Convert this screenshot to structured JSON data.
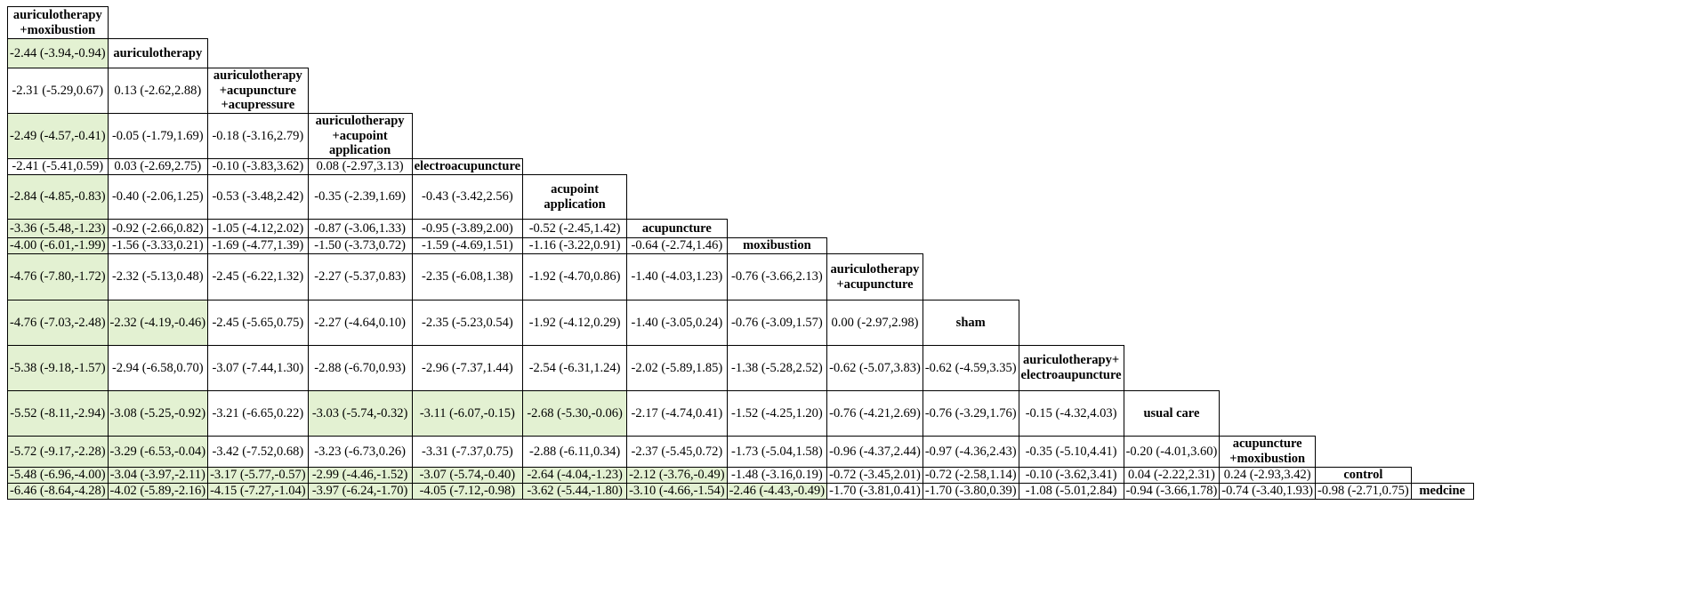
{
  "chart_data": {
    "type": "table",
    "title": "",
    "treatments": [
      "auriculotherapy +moxibustion",
      "auriculotherapy",
      "auriculotherapy +acupuncture +acupressure",
      "auriculotherapy +acupoint application",
      "electroacupuncture",
      "acupoint application",
      "acupuncture",
      "moxibustion",
      "auriculotherapy +acupuncture",
      "sham",
      "auriculotherapy+ electroaupuncture",
      "usual care",
      "acupuncture +moxibustion",
      "control",
      "medcine"
    ],
    "rows": [
      [],
      [
        "-2.44 (-3.94,-0.94)"
      ],
      [
        "-2.31 (-5.29,0.67)",
        "0.13 (-2.62,2.88)"
      ],
      [
        "-2.49 (-4.57,-0.41)",
        "-0.05 (-1.79,1.69)",
        "-0.18 (-3.16,2.79)"
      ],
      [
        "-2.41 (-5.41,0.59)",
        "0.03 (-2.69,2.75)",
        "-0.10 (-3.83,3.62)",
        "0.08 (-2.97,3.13)"
      ],
      [
        "-2.84 (-4.85,-0.83)",
        "-0.40 (-2.06,1.25)",
        "-0.53 (-3.48,2.42)",
        "-0.35 (-2.39,1.69)",
        "-0.43 (-3.42,2.56)"
      ],
      [
        "-3.36 (-5.48,-1.23)",
        "-0.92 (-2.66,0.82)",
        "-1.05 (-4.12,2.02)",
        "-0.87 (-3.06,1.33)",
        "-0.95 (-3.89,2.00)",
        "-0.52 (-2.45,1.42)"
      ],
      [
        "-4.00 (-6.01,-1.99)",
        "-1.56 (-3.33,0.21)",
        "-1.69 (-4.77,1.39)",
        "-1.50 (-3.73,0.72)",
        "-1.59 (-4.69,1.51)",
        "-1.16 (-3.22,0.91)",
        "-0.64 (-2.74,1.46)"
      ],
      [
        "-4.76 (-7.80,-1.72)",
        "-2.32 (-5.13,0.48)",
        "-2.45 (-6.22,1.32)",
        "-2.27 (-5.37,0.83)",
        "-2.35 (-6.08,1.38)",
        "-1.92 (-4.70,0.86)",
        "-1.40 (-4.03,1.23)",
        "-0.76 (-3.66,2.13)"
      ],
      [
        "-4.76 (-7.03,-2.48)",
        "-2.32 (-4.19,-0.46)",
        "-2.45 (-5.65,0.75)",
        "-2.27 (-4.64,0.10)",
        "-2.35 (-5.23,0.54)",
        "-1.92 (-4.12,0.29)",
        "-1.40 (-3.05,0.24)",
        "-0.76 (-3.09,1.57)",
        "0.00 (-2.97,2.98)"
      ],
      [
        "-5.38 (-9.18,-1.57)",
        "-2.94 (-6.58,0.70)",
        "-3.07 (-7.44,1.30)",
        "-2.88 (-6.70,0.93)",
        "-2.96 (-7.37,1.44)",
        "-2.54 (-6.31,1.24)",
        "-2.02 (-5.89,1.85)",
        "-1.38 (-5.28,2.52)",
        "-0.62 (-5.07,3.83)",
        "-0.62 (-4.59,3.35)"
      ],
      [
        "-5.52 (-8.11,-2.94)",
        "-3.08 (-5.25,-0.92)",
        "-3.21 (-6.65,0.22)",
        "-3.03 (-5.74,-0.32)",
        "-3.11 (-6.07,-0.15)",
        "-2.68 (-5.30,-0.06)",
        "-2.17 (-4.74,0.41)",
        "-1.52 (-4.25,1.20)",
        "-0.76 (-4.21,2.69)",
        "-0.76 (-3.29,1.76)",
        "-0.15 (-4.32,4.03)"
      ],
      [
        "-5.72 (-9.17,-2.28)",
        "-3.29 (-6.53,-0.04)",
        "-3.42 (-7.52,0.68)",
        "-3.23 (-6.73,0.26)",
        "-3.31 (-7.37,0.75)",
        "-2.88 (-6.11,0.34)",
        "-2.37 (-5.45,0.72)",
        "-1.73 (-5.04,1.58)",
        "-0.96 (-4.37,2.44)",
        "-0.97 (-4.36,2.43)",
        "-0.35 (-5.10,4.41)",
        "-0.20 (-4.01,3.60)"
      ],
      [
        "-5.48 (-6.96,-4.00)",
        "-3.04 (-3.97,-2.11)",
        "-3.17 (-5.77,-0.57)",
        "-2.99 (-4.46,-1.52)",
        "-3.07 (-5.74,-0.40)",
        "-2.64 (-4.04,-1.23)",
        "-2.12 (-3.76,-0.49)",
        "-1.48 (-3.16,0.19)",
        "-0.72 (-3.45,2.01)",
        "-0.72 (-2.58,1.14)",
        "-0.10 (-3.62,3.41)",
        "0.04 (-2.22,2.31)",
        "0.24 (-2.93,3.42)"
      ],
      [
        "-6.46 (-8.64,-4.28)",
        "-4.02 (-5.89,-2.16)",
        "-4.15 (-7.27,-1.04)",
        "-3.97 (-6.24,-1.70)",
        "-4.05 (-7.12,-0.98)",
        "-3.62 (-5.44,-1.80)",
        "-3.10 (-4.66,-1.54)",
        "-2.46 (-4.43,-0.49)",
        "-1.70 (-3.81,0.41)",
        "-1.70 (-3.80,0.39)",
        "-1.08 (-5.01,2.84)",
        "-0.94 (-3.66,1.78)",
        "-0.74 (-3.40,1.93)",
        "-0.98 (-2.71,0.75)"
      ]
    ],
    "significant_cells": [
      [
        1,
        0
      ],
      [
        3,
        0
      ],
      [
        5,
        0
      ],
      [
        6,
        0
      ],
      [
        7,
        0
      ],
      [
        8,
        0
      ],
      [
        9,
        0
      ],
      [
        10,
        0
      ],
      [
        11,
        0
      ],
      [
        12,
        0
      ],
      [
        13,
        0
      ],
      [
        14,
        0
      ],
      [
        9,
        1
      ],
      [
        11,
        1
      ],
      [
        12,
        1
      ],
      [
        13,
        1
      ],
      [
        14,
        1
      ],
      [
        13,
        2
      ],
      [
        14,
        2
      ],
      [
        11,
        3
      ],
      [
        13,
        3
      ],
      [
        14,
        3
      ],
      [
        11,
        4
      ],
      [
        13,
        4
      ],
      [
        14,
        4
      ],
      [
        11,
        5
      ],
      [
        13,
        5
      ],
      [
        14,
        5
      ],
      [
        13,
        6
      ],
      [
        14,
        6
      ],
      [
        14,
        7
      ]
    ],
    "significant_color": "#e3f1d2"
  }
}
